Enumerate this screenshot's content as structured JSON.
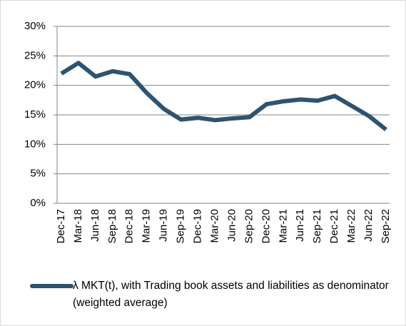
{
  "chart_data": {
    "type": "line",
    "categories": [
      "Dec-17",
      "Mar-18",
      "Jun-18",
      "Sep-18",
      "Dec-18",
      "Mar-19",
      "Jun-19",
      "Sep-19",
      "Dec-19",
      "Mar-20",
      "Jun-20",
      "Sep-20",
      "Dec-20",
      "Mar-21",
      "Jun-21",
      "Sep-21",
      "Dec-21",
      "Mar-22",
      "Jun-22",
      "Sep-22"
    ],
    "series": [
      {
        "name": "λ MKT(t), with Trading book assets and liabilities as denominator (weighted average)",
        "color": "#2e5370",
        "values": [
          22.0,
          23.8,
          21.5,
          22.4,
          21.9,
          18.7,
          16.0,
          14.2,
          14.5,
          14.1,
          14.4,
          14.6,
          16.8,
          17.3,
          17.6,
          17.4,
          18.2,
          16.5,
          14.8,
          12.5
        ]
      }
    ],
    "ylim": [
      0,
      30
    ],
    "yticks": [
      {
        "value": 0,
        "label": "0%"
      },
      {
        "value": 5,
        "label": "5%"
      },
      {
        "value": 10,
        "label": "10%"
      },
      {
        "value": 15,
        "label": "15%"
      },
      {
        "value": 20,
        "label": "20%"
      },
      {
        "value": 25,
        "label": "25%"
      },
      {
        "value": 30,
        "label": "30%"
      }
    ],
    "grid": true
  }
}
